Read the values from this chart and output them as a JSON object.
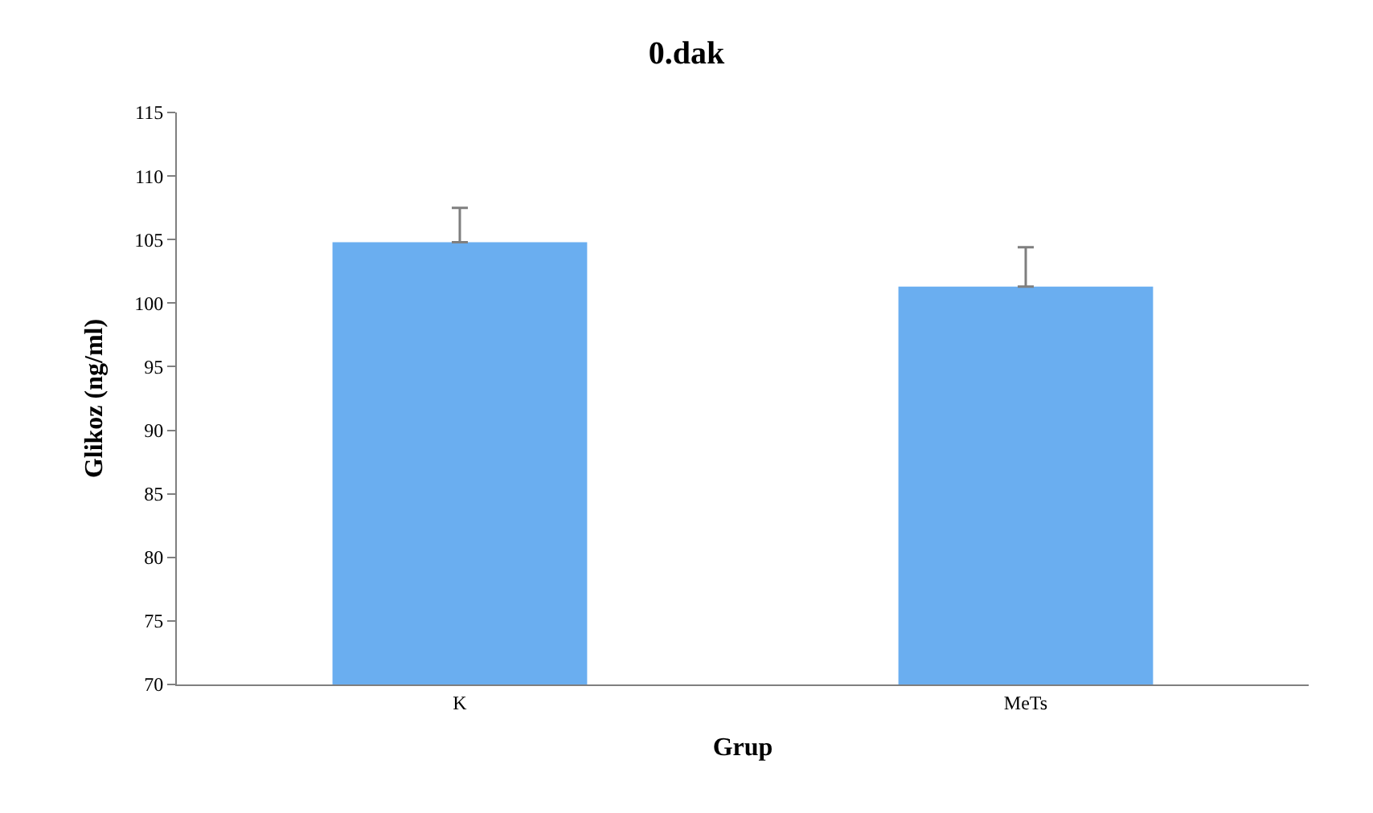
{
  "chart_data": {
    "type": "bar",
    "title": "0.dak",
    "xlabel": "Grup",
    "ylabel": "Glikoz (ng/ml)",
    "categories": [
      "K",
      "MeTs"
    ],
    "values": [
      104.8,
      101.3
    ],
    "errors": [
      [
        104.8,
        107.5
      ],
      [
        101.3,
        104.4
      ]
    ],
    "color": "#6aaef0",
    "ylim": [
      70,
      115
    ],
    "yticks": [
      70,
      75,
      80,
      85,
      90,
      95,
      100,
      105,
      110,
      115
    ],
    "legend": false
  }
}
